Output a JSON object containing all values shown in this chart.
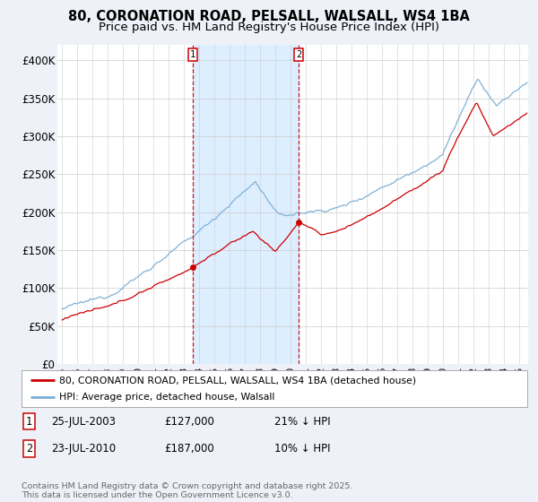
{
  "title1": "80, CORONATION ROAD, PELSALL, WALSALL, WS4 1BA",
  "title2": "Price paid vs. HM Land Registry's House Price Index (HPI)",
  "ylim": [
    0,
    420000
  ],
  "yticks": [
    0,
    50000,
    100000,
    150000,
    200000,
    250000,
    300000,
    350000,
    400000
  ],
  "ytick_labels": [
    "£0",
    "£50K",
    "£100K",
    "£150K",
    "£200K",
    "£250K",
    "£300K",
    "£350K",
    "£400K"
  ],
  "sale1_date": 2003.55,
  "sale1_price": 127000,
  "sale1_label": "1",
  "sale2_date": 2010.55,
  "sale2_price": 187000,
  "sale2_label": "2",
  "legend_red": "80, CORONATION ROAD, PELSALL, WALSALL, WS4 1BA (detached house)",
  "legend_blue": "HPI: Average price, detached house, Walsall",
  "footnote": "Contains HM Land Registry data © Crown copyright and database right 2025.\nThis data is licensed under the Open Government Licence v3.0.",
  "red_color": "#cc0000",
  "blue_color": "#7aaed4",
  "shade_color": "#ddeeff",
  "background_color": "#eef2f8",
  "plot_bg_color": "#ffffff",
  "grid_color": "#cccccc",
  "title_fontsize": 10.5,
  "subtitle_fontsize": 9.5,
  "xmin": 1994.7,
  "xmax": 2025.6
}
